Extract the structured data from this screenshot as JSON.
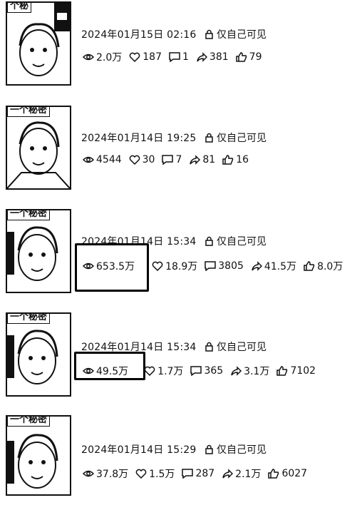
{
  "posts": [
    {
      "tag": "个秘",
      "date": "2024年01月15日 02:16",
      "visibility": "仅自己可见",
      "views": "2.0万",
      "likes": "187",
      "comments": "1",
      "shares": "381",
      "thumbs": "79"
    },
    {
      "tag": "一个秘密",
      "date": "2024年01月14日 19:25",
      "visibility": "仅自己可见",
      "views": "4544",
      "likes": "30",
      "comments": "7",
      "shares": "81",
      "thumbs": "16"
    },
    {
      "tag": "一个秘密",
      "date": "2024年01月14日 15:34",
      "visibility": "仅自己可见",
      "views": "653.5万",
      "likes": "18.9万",
      "comments": "3805",
      "shares": "41.5万",
      "thumbs": "8.0万"
    },
    {
      "tag": "一个秘密",
      "date": "2024年01月14日 15:34",
      "visibility": "仅自己可见",
      "views": "49.5万",
      "likes": "1.7万",
      "comments": "365",
      "shares": "3.1万",
      "thumbs": "7102"
    },
    {
      "tag": "一个秘密",
      "date": "2024年01月14日 15:29",
      "visibility": "仅自己可见",
      "views": "37.8万",
      "likes": "1.5万",
      "comments": "287",
      "shares": "2.1万",
      "thumbs": "6027"
    }
  ]
}
